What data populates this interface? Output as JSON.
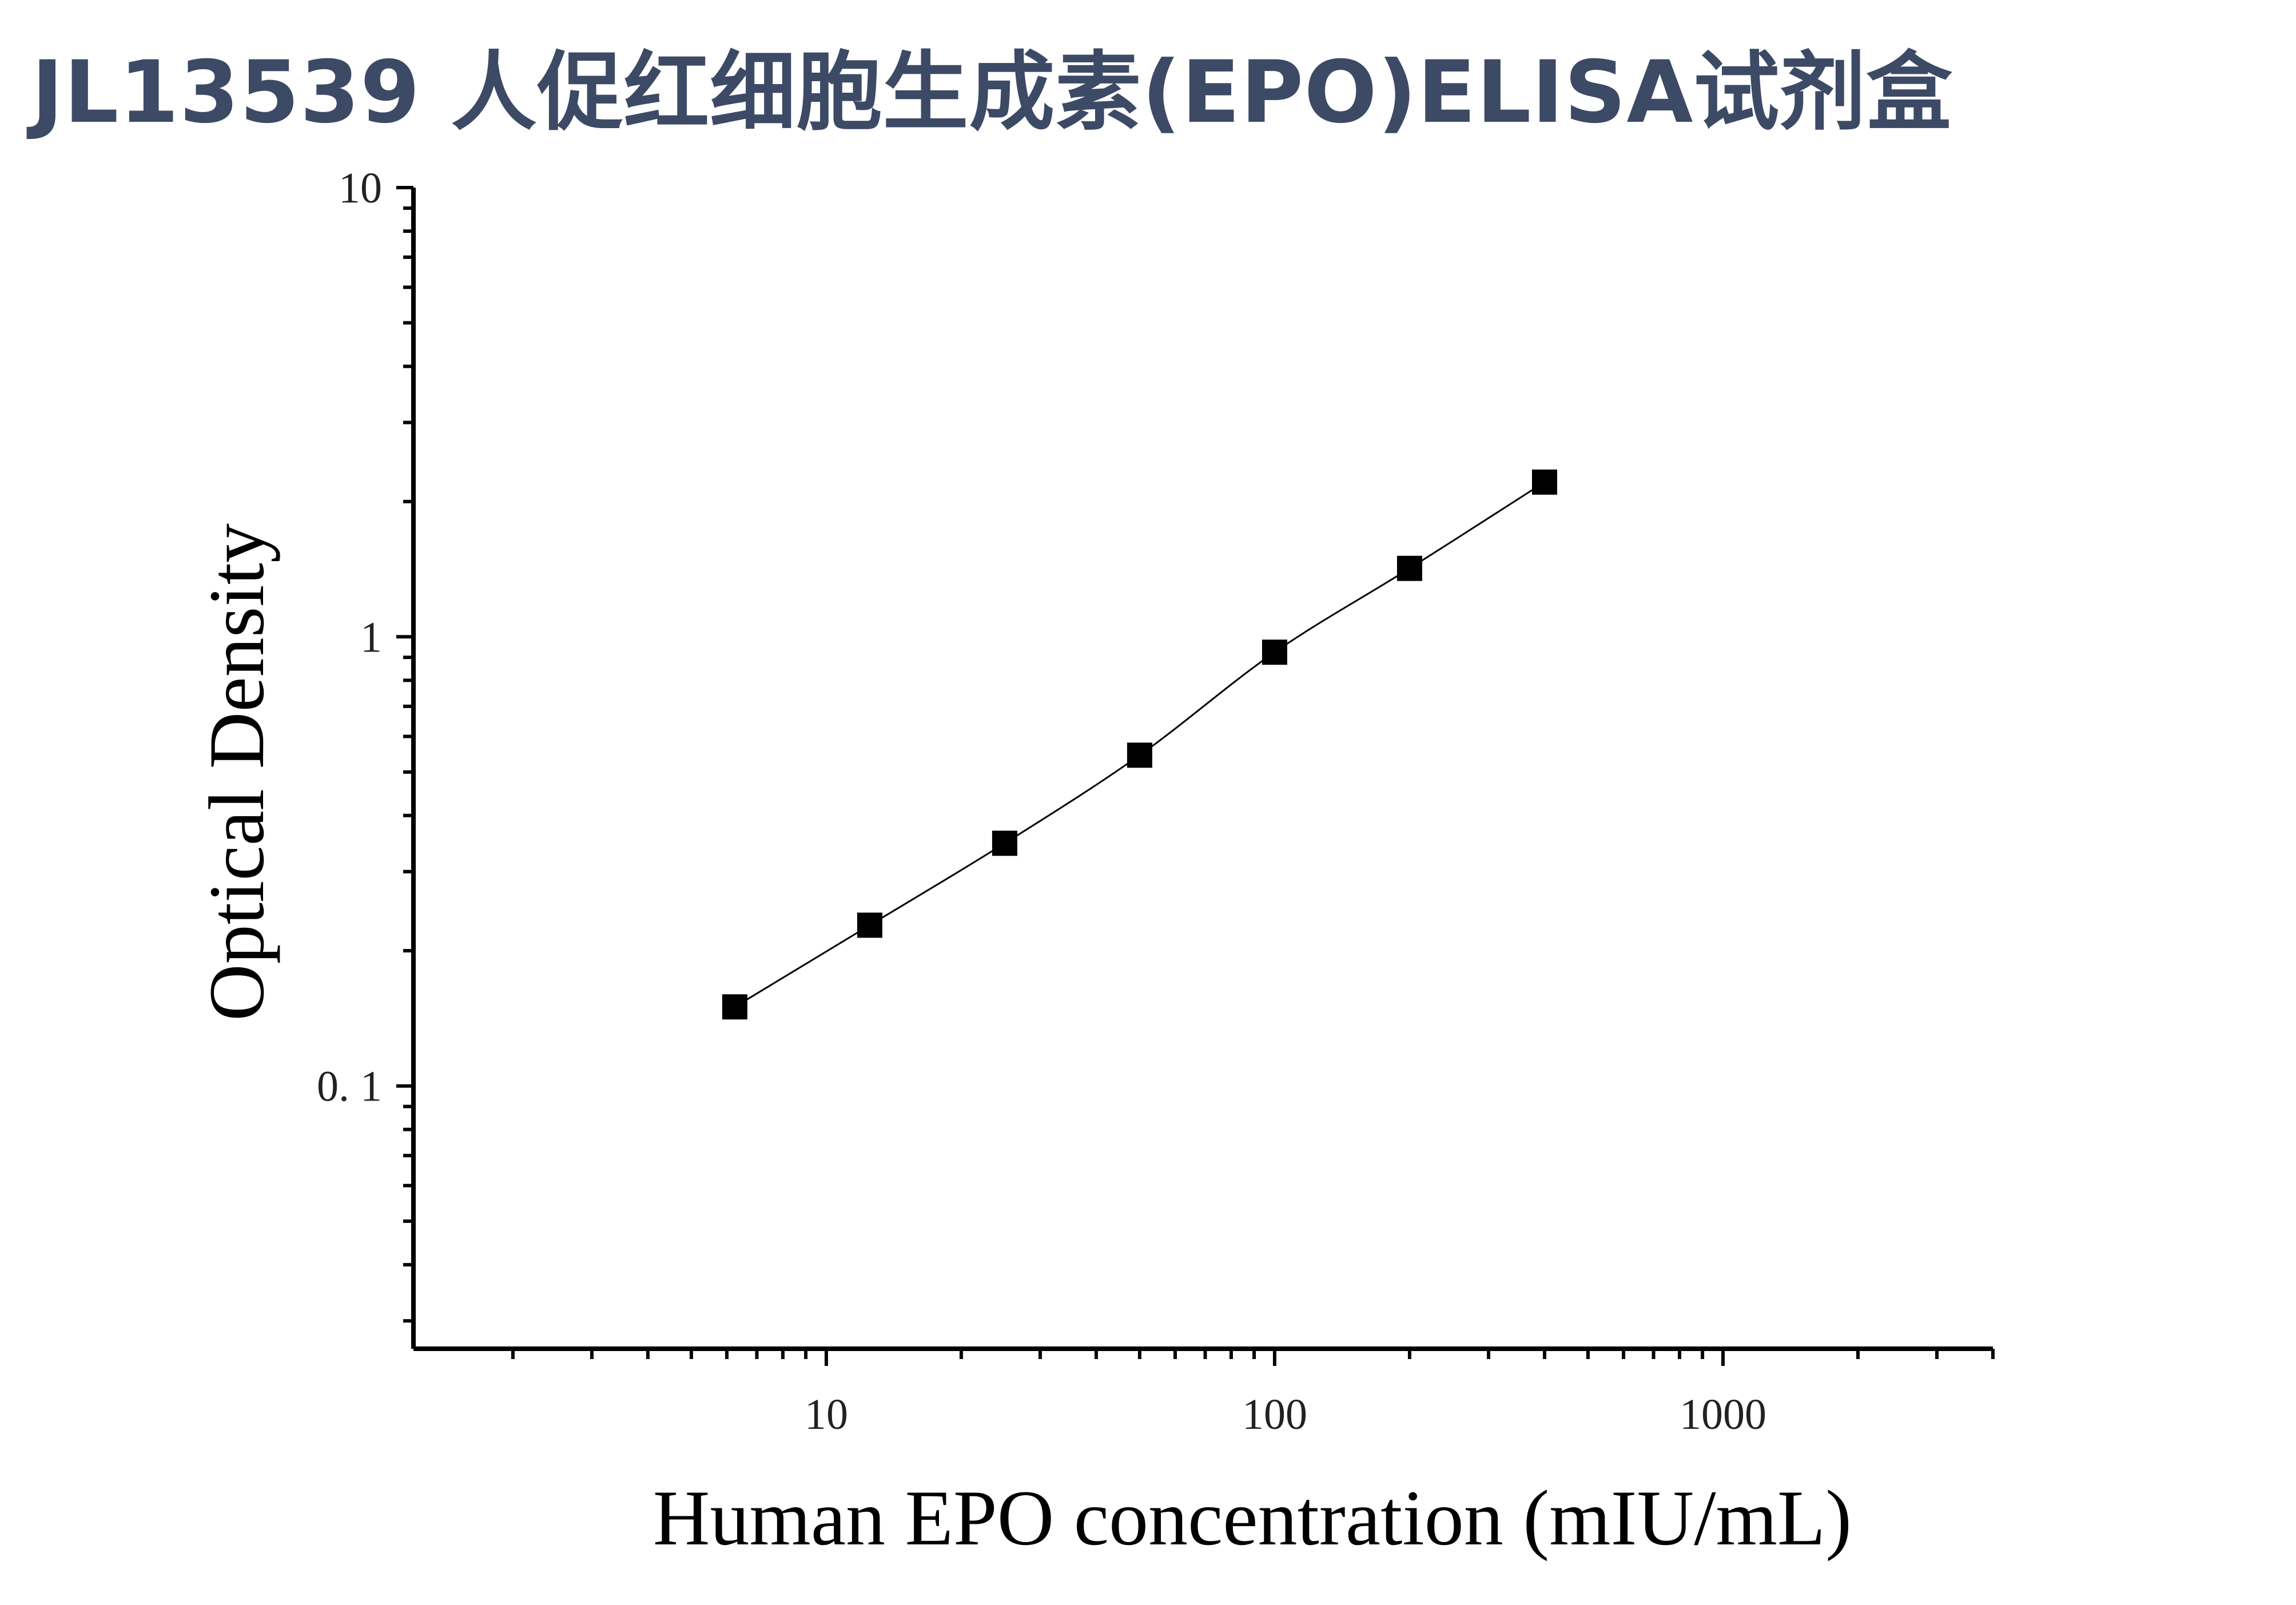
{
  "page": {
    "title": "JL13539 人促红细胞生成素(EPO)ELISA试剂盒",
    "title_color": "#3d4a66"
  },
  "chart_data": {
    "type": "scatter",
    "xlabel": "Human EPO concentration (mIU/mL)",
    "ylabel": "Optical Density",
    "x_scale": "log",
    "y_scale": "log",
    "xlim": [
      1.2,
      4000
    ],
    "ylim": [
      0.026,
      10
    ],
    "x_ticks": [
      {
        "value": 10,
        "label": "10"
      },
      {
        "value": 100,
        "label": "100"
      },
      {
        "value": 1000,
        "label": "1000"
      }
    ],
    "y_ticks": [
      {
        "value": 0.1,
        "label": "0. 1"
      },
      {
        "value": 1,
        "label": "1"
      },
      {
        "value": 10,
        "label": "10"
      }
    ],
    "grid": false,
    "legend": false,
    "marker": "square",
    "marker_color": "#000000",
    "line": "smooth fitted curve through points",
    "series": [
      {
        "x": [
          6.25,
          12.5,
          25,
          50,
          100,
          200,
          400
        ],
        "y": [
          0.15,
          0.228,
          0.347,
          0.545,
          0.924,
          1.42,
          2.21
        ]
      }
    ]
  }
}
